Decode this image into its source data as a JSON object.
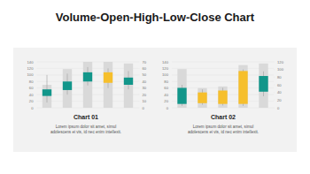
{
  "title": "Volume-Open-High-Low-Close Chart",
  "chart_data": [
    {
      "type": "stock",
      "title": "Chart 01",
      "annotations": [
        "Lorem ipsum dolor sit amet, simul",
        "adolescens ei vis, id nec enim intellexit."
      ],
      "categories": [
        null,
        null,
        null,
        null,
        null
      ],
      "volume": [
        70,
        118,
        140,
        140,
        135
      ],
      "open": [
        18,
        27,
        40,
        54,
        35
      ],
      "high": [
        50,
        52,
        62,
        60,
        56
      ],
      "low": [
        8,
        20,
        34,
        30,
        28
      ],
      "close": [
        28,
        40,
        54,
        38,
        46
      ],
      "color": "#d9d9d9",
      "colors": [
        "#12968a",
        "#12968a",
        "#12968a",
        "#f6bf2c",
        "#12968a"
      ],
      "ylim": [
        0,
        140
      ],
      "yticks": [
        0,
        20,
        40,
        60,
        80,
        100,
        120,
        140
      ],
      "y2lim": [
        0,
        70
      ],
      "y2ticks": [
        0,
        10,
        20,
        30,
        40,
        50,
        60,
        70
      ],
      "grid": true,
      "tick_labels": "y"
    },
    {
      "type": "stock",
      "title": "Chart 02",
      "annotations": [
        "Lorem ipsum dolor sit amet, simul",
        "adolescens ei vis, id nec enim intellexit."
      ],
      "categories": [
        null,
        null,
        null,
        null,
        null
      ],
      "volume": [
        118,
        60,
        65,
        130,
        135
      ],
      "open": [
        10,
        40,
        45,
        96,
        42
      ],
      "high": [
        60,
        48,
        52,
        100,
        95
      ],
      "low": [
        5,
        8,
        6,
        5,
        30
      ],
      "close": [
        52,
        12,
        10,
        10,
        83
      ],
      "color": "#d9d9d9",
      "colors": [
        "#12968a",
        "#f6bf2c",
        "#f6bf2c",
        "#f6bf2c",
        "#12968a"
      ],
      "ylim": [
        0,
        140
      ],
      "yticks": [
        0,
        20,
        40,
        60,
        80,
        100,
        120,
        140
      ],
      "y2lim": [
        0,
        120
      ],
      "y2ticks": [
        0,
        20,
        40,
        60,
        80,
        100,
        120
      ],
      "grid": true,
      "tick_labels": "y"
    }
  ]
}
